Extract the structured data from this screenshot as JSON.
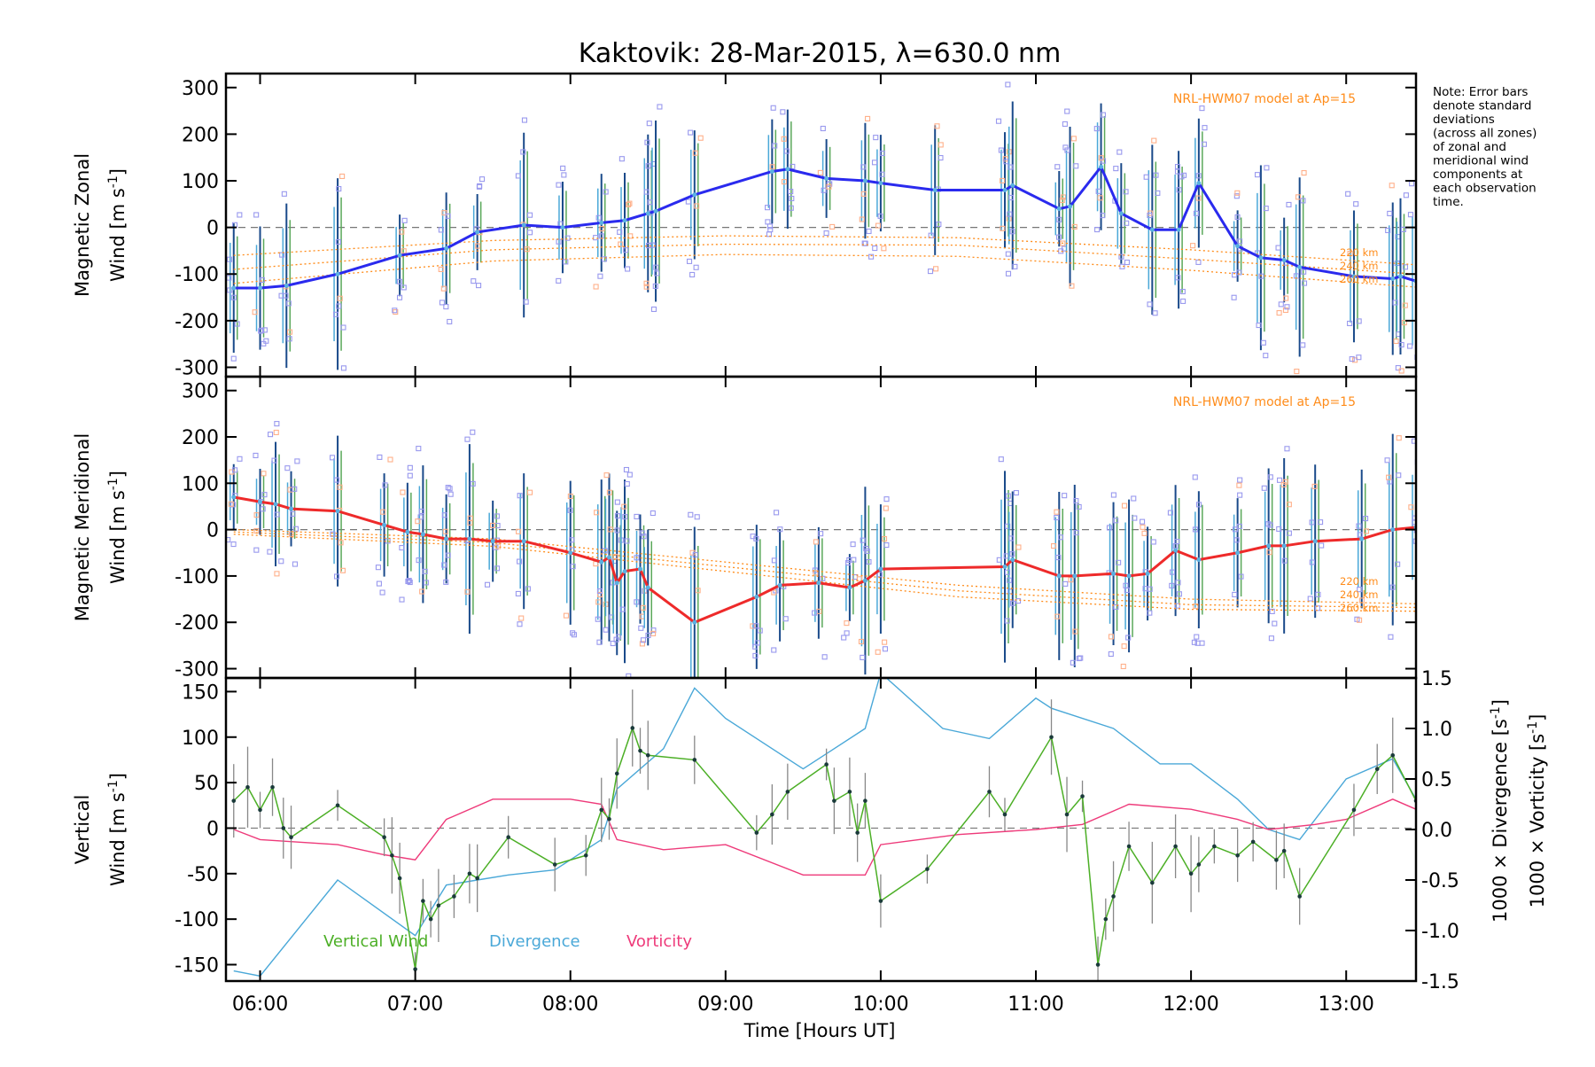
{
  "title": "Kaktovik: 28-Mar-2015, λ=630.0 nm",
  "note": [
    "Note: Error bars",
    "denote standard",
    "deviations",
    "(across all zones)",
    "of zonal and",
    "meridional wind",
    "components at",
    "each observation",
    "time."
  ],
  "colors": {
    "zonal": "#2a2aee",
    "meridional": "#ee2a2a",
    "vertical": "#4caf26",
    "divergence": "#4aa8d8",
    "vorticity": "#ee3a7a",
    "model": "#ff8c1a",
    "scatter": "#9999ee"
  },
  "chart_data": [
    {
      "type": "line",
      "panel": "zonal",
      "ylabel_line1": "Magnetic Zonal",
      "ylabel_line2_prefix": "Wind [m s",
      "ylabel_sup": "-1",
      "ylabel_line2_suffix": "]",
      "ylim": [
        -320,
        330
      ],
      "yticks": [
        300,
        200,
        100,
        0,
        -100,
        -200,
        -300
      ],
      "model_label": "NRL-HWM07 model at Ap=15",
      "model_heights": [
        "220 km",
        "240 km",
        "260 km"
      ],
      "series": [
        {
          "name": "zonal",
          "x": [
            5.83,
            6.0,
            6.17,
            6.5,
            6.9,
            7.2,
            7.4,
            7.7,
            7.95,
            8.2,
            8.35,
            8.5,
            8.55,
            8.8,
            9.3,
            9.4,
            9.65,
            9.9,
            10.0,
            10.35,
            10.8,
            10.85,
            11.15,
            11.22,
            11.42,
            11.55,
            11.75,
            11.92,
            12.05,
            12.3,
            12.45,
            12.6,
            12.7,
            13.05,
            13.3,
            13.35,
            13.45
          ],
          "values": [
            -130,
            -130,
            -125,
            -100,
            -60,
            -45,
            -10,
            5,
            0,
            10,
            15,
            30,
            35,
            70,
            120,
            125,
            105,
            100,
            95,
            80,
            80,
            90,
            40,
            45,
            130,
            30,
            -5,
            -5,
            95,
            -40,
            -65,
            -70,
            -85,
            -105,
            -110,
            -105,
            -115
          ]
        }
      ],
      "model_lines": [
        {
          "name": "220 km",
          "x": [
            5.83,
            7.5,
            9.0,
            10.5,
            12.0,
            13.45
          ],
          "values": [
            -60,
            -28,
            -18,
            -22,
            -48,
            -80
          ]
        },
        {
          "name": "240 km",
          "x": [
            5.83,
            7.5,
            9.0,
            10.5,
            12.0,
            13.45
          ],
          "values": [
            -90,
            -48,
            -36,
            -38,
            -68,
            -100
          ]
        },
        {
          "name": "260 km",
          "x": [
            5.83,
            7.5,
            9.0,
            10.5,
            12.0,
            13.45
          ],
          "values": [
            -120,
            -72,
            -58,
            -62,
            -92,
            -128
          ]
        }
      ]
    },
    {
      "type": "line",
      "panel": "meridional",
      "ylabel_line1": "Magnetic Meridional",
      "ylabel_line2_prefix": "Wind [m s",
      "ylabel_sup": "-1",
      "ylabel_line2_suffix": "]",
      "ylim": [
        -320,
        330
      ],
      "yticks": [
        300,
        200,
        100,
        0,
        -100,
        -200,
        -300
      ],
      "model_label": "NRL-HWM07 model at Ap=15",
      "model_heights": [
        "220 km",
        "240 km",
        "260 km"
      ],
      "series": [
        {
          "name": "meridional",
          "x": [
            5.83,
            6.0,
            6.1,
            6.2,
            6.5,
            6.8,
            6.95,
            7.05,
            7.2,
            7.35,
            7.5,
            7.7,
            8.0,
            8.2,
            8.25,
            8.3,
            8.35,
            8.45,
            8.5,
            8.8,
            9.2,
            9.35,
            9.6,
            9.8,
            9.9,
            10.0,
            10.8,
            10.85,
            11.15,
            11.25,
            11.5,
            11.6,
            11.72,
            11.9,
            12.05,
            12.3,
            12.5,
            12.6,
            12.8,
            13.1,
            13.3,
            13.45
          ],
          "values": [
            70,
            60,
            55,
            45,
            40,
            10,
            -5,
            -10,
            -20,
            -20,
            -25,
            -25,
            -50,
            -70,
            -60,
            -115,
            -90,
            -85,
            -125,
            -200,
            -145,
            -120,
            -115,
            -125,
            -110,
            -85,
            -80,
            -65,
            -100,
            -100,
            -95,
            -100,
            -95,
            -45,
            -65,
            -50,
            -35,
            -35,
            -25,
            -20,
            0,
            5
          ]
        }
      ],
      "model_lines": [
        {
          "name": "220 km",
          "x": [
            5.83,
            7.5,
            9.0,
            10.5,
            12.0,
            13.45
          ],
          "values": [
            0,
            -20,
            -70,
            -120,
            -150,
            -160
          ]
        },
        {
          "name": "240 km",
          "x": [
            5.83,
            7.5,
            9.0,
            10.5,
            12.0,
            13.45
          ],
          "values": [
            -5,
            -28,
            -80,
            -132,
            -162,
            -168
          ]
        },
        {
          "name": "260 km",
          "x": [
            5.83,
            7.5,
            9.0,
            10.5,
            12.0,
            13.45
          ],
          "values": [
            -10,
            -36,
            -90,
            -145,
            -172,
            -176
          ]
        }
      ]
    },
    {
      "type": "line",
      "panel": "vertical",
      "ylabel_line1": "Vertical",
      "ylabel_line2_prefix": "Wind [m s",
      "ylabel_sup": "-1",
      "ylabel_line2_suffix": "]",
      "ylim": [
        -168,
        165
      ],
      "yticks": [
        150,
        100,
        50,
        0,
        -50,
        -100,
        -150
      ],
      "ylim_right": [
        -1.5,
        1.5
      ],
      "yticks_right": [
        "1.5",
        "1.0",
        "0.5",
        "0.0",
        "-0.5",
        "-1.0",
        "-1.5"
      ],
      "ylabel_right1": "1000 × Divergence [s",
      "ylabel_right2": "1000 × Vorticity [s",
      "ylabel_right_sup": "-1",
      "ylabel_right_suffix": "]",
      "legend": [
        "Vertical Wind",
        "Divergence",
        "Vorticity"
      ],
      "series": [
        {
          "name": "Vertical Wind",
          "x": [
            5.83,
            5.92,
            6.0,
            6.08,
            6.15,
            6.2,
            6.5,
            6.8,
            6.85,
            6.9,
            7.0,
            7.05,
            7.1,
            7.15,
            7.25,
            7.35,
            7.4,
            7.6,
            7.9,
            8.1,
            8.2,
            8.25,
            8.3,
            8.4,
            8.45,
            8.5,
            8.8,
            9.2,
            9.3,
            9.4,
            9.65,
            9.7,
            9.8,
            9.85,
            9.9,
            10.0,
            10.3,
            10.7,
            10.8,
            11.1,
            11.2,
            11.3,
            11.4,
            11.45,
            11.5,
            11.6,
            11.75,
            11.9,
            12.0,
            12.05,
            12.15,
            12.3,
            12.4,
            12.55,
            12.6,
            12.7,
            13.05,
            13.2,
            13.3,
            13.45
          ],
          "values": [
            30,
            45,
            20,
            45,
            0,
            -10,
            25,
            -10,
            -30,
            -55,
            -155,
            -80,
            -100,
            -85,
            -75,
            -50,
            -55,
            -10,
            -40,
            -30,
            20,
            10,
            60,
            110,
            85,
            80,
            75,
            -5,
            15,
            40,
            70,
            30,
            40,
            -5,
            30,
            -80,
            -45,
            40,
            15,
            100,
            15,
            35,
            -150,
            -100,
            -75,
            -20,
            -60,
            -20,
            -50,
            -40,
            -20,
            -30,
            -15,
            -35,
            -25,
            -75,
            20,
            65,
            80,
            30
          ]
        },
        {
          "name": "Divergence",
          "x": [
            5.83,
            6.0,
            6.5,
            7.0,
            7.2,
            7.4,
            7.6,
            7.9,
            8.0,
            8.2,
            8.3,
            8.6,
            8.8,
            9.0,
            9.5,
            9.7,
            9.9,
            10.0,
            10.4,
            10.7,
            11.0,
            11.1,
            11.5,
            11.8,
            12.0,
            12.3,
            12.5,
            12.7,
            13.0,
            13.3,
            13.45
          ],
          "values": [
            -1.4,
            -1.45,
            -0.5,
            -1.05,
            -0.55,
            -0.5,
            -0.45,
            -0.4,
            -0.3,
            -0.1,
            0.4,
            0.8,
            1.4,
            1.1,
            0.6,
            0.8,
            1.0,
            1.55,
            1.0,
            0.9,
            1.3,
            1.2,
            1.0,
            0.65,
            0.65,
            0.3,
            0.0,
            -0.1,
            0.5,
            0.7,
            0.3
          ]
        },
        {
          "name": "Vorticity",
          "x": [
            5.83,
            6.0,
            6.5,
            6.8,
            7.0,
            7.2,
            7.5,
            8.0,
            8.2,
            8.3,
            8.6,
            9.0,
            9.5,
            9.9,
            10.0,
            10.5,
            11.0,
            11.3,
            11.6,
            12.0,
            12.3,
            12.5,
            12.8,
            13.0,
            13.3,
            13.45
          ],
          "values": [
            0.0,
            -0.1,
            -0.15,
            -0.25,
            -0.3,
            0.1,
            0.3,
            0.3,
            0.25,
            -0.1,
            -0.2,
            -0.15,
            -0.45,
            -0.45,
            -0.15,
            -0.05,
            0.0,
            0.05,
            0.25,
            0.2,
            0.1,
            0.0,
            0.05,
            0.1,
            0.3,
            0.2
          ]
        }
      ]
    }
  ],
  "xaxis": {
    "xlim": [
      5.78,
      13.45
    ],
    "ticks": [
      {
        "v": 6,
        "label": "06:00"
      },
      {
        "v": 7,
        "label": "07:00"
      },
      {
        "v": 8,
        "label": "08:00"
      },
      {
        "v": 9,
        "label": "09:00"
      },
      {
        "v": 10,
        "label": "10:00"
      },
      {
        "v": 11,
        "label": "11:00"
      },
      {
        "v": 12,
        "label": "12:00"
      },
      {
        "v": 13,
        "label": "13:00"
      }
    ],
    "label": "Time [Hours UT]"
  }
}
